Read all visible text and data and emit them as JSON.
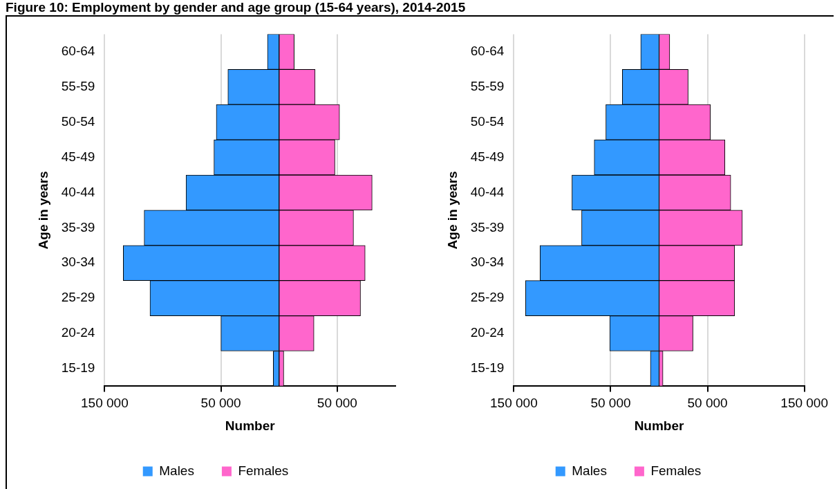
{
  "chart_data": [
    {
      "type": "bar",
      "title": "Figure 10: Employment by gender and age group (15-64 years), 2014-2015",
      "orientation": "horizontal",
      "stacked": true,
      "categories": [
        "60-64",
        "55-59",
        "50-54",
        "45-49",
        "40-44",
        "35-39",
        "30-34",
        "25-29",
        "20-24",
        "15-19"
      ],
      "series": [
        {
          "name": "Males",
          "color": "#3399ff",
          "values": [
            -10000,
            -44000,
            -54000,
            -56000,
            -80000,
            -116000,
            -134000,
            -111000,
            -50000,
            -5000
          ]
        },
        {
          "name": "Females",
          "color": "#ff66cc",
          "values": [
            13000,
            31000,
            52000,
            48000,
            80000,
            64000,
            74000,
            70000,
            30000,
            4000
          ]
        }
      ],
      "xlabel": "Number",
      "ylabel": "Age in years",
      "xlim": [
        -150000,
        100000
      ],
      "xticks": [
        {
          "value": -150000,
          "label": "150 000"
        },
        {
          "value": -50000,
          "label": "50 000"
        },
        {
          "value": 50000,
          "label": "50 000"
        }
      ],
      "grid": "x",
      "legend": "bottom"
    },
    {
      "type": "bar",
      "orientation": "horizontal",
      "stacked": true,
      "categories": [
        "60-64",
        "55-59",
        "50-54",
        "45-49",
        "40-44",
        "35-39",
        "30-34",
        "25-29",
        "20-24",
        "15-19"
      ],
      "series": [
        {
          "name": "Males",
          "color": "#3399ff",
          "values": [
            -19000,
            -38000,
            -55000,
            -67000,
            -90000,
            -80000,
            -123000,
            -138000,
            -51000,
            -9000
          ]
        },
        {
          "name": "Females",
          "color": "#ff66cc",
          "values": [
            11000,
            30000,
            53000,
            68000,
            74000,
            86000,
            78000,
            78000,
            35000,
            4000
          ]
        }
      ],
      "xlabel": "Number",
      "ylabel": "Age in years",
      "xlim": [
        -150000,
        150000
      ],
      "xticks": [
        {
          "value": -150000,
          "label": "150 000"
        },
        {
          "value": -50000,
          "label": "50 000"
        },
        {
          "value": 50000,
          "label": "50 000"
        },
        {
          "value": 150000,
          "label": "150 000"
        }
      ],
      "grid": "x",
      "legend": "bottom"
    }
  ]
}
